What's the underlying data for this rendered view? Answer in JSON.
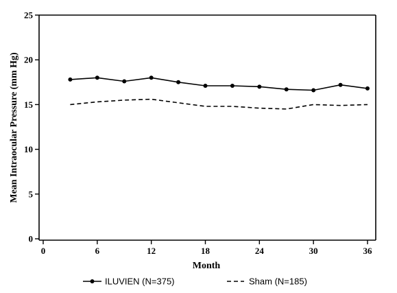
{
  "chart_data": {
    "type": "line",
    "title": "",
    "xlabel": "Month",
    "ylabel": "Mean Intraocular Pressure (mm Hg)",
    "xlim": [
      0,
      36
    ],
    "ylim": [
      0,
      25
    ],
    "xticks": [
      0,
      6,
      12,
      18,
      24,
      30,
      36
    ],
    "yticks": [
      0,
      5,
      10,
      15,
      20,
      25
    ],
    "grid": false,
    "legend_position": "bottom",
    "series": [
      {
        "name": "ILUVIEN (N=375)",
        "style": "solid-with-markers",
        "color": "#000000",
        "x": [
          3,
          6,
          9,
          12,
          15,
          18,
          21,
          24,
          27,
          30,
          33,
          36
        ],
        "y": [
          17.8,
          18.0,
          17.6,
          18.0,
          17.5,
          17.1,
          17.1,
          17.0,
          16.7,
          16.6,
          17.2,
          16.8
        ]
      },
      {
        "name": "Sham (N=185)",
        "style": "dashed",
        "color": "#000000",
        "x": [
          3,
          6,
          9,
          12,
          15,
          18,
          21,
          24,
          27,
          30,
          33,
          36
        ],
        "y": [
          15.0,
          15.3,
          15.5,
          15.6,
          15.2,
          14.8,
          14.8,
          14.6,
          14.5,
          15.0,
          14.9,
          15.0
        ]
      }
    ]
  }
}
